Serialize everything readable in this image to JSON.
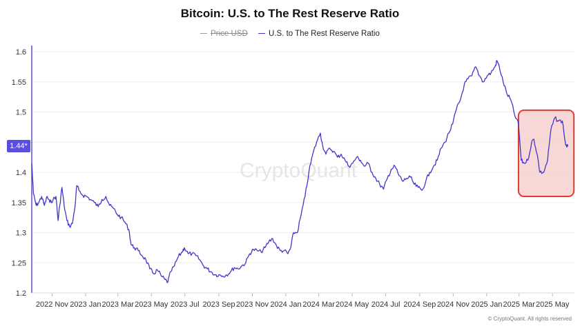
{
  "chart_data": {
    "type": "line",
    "title": "Bitcoin: U.S. to The Rest Reserve Ratio",
    "legend": [
      {
        "name": "Price USD",
        "color": "#9a9a9a",
        "hidden": true
      },
      {
        "name": "U.S. to The Rest Reserve Ratio",
        "color": "#3f36c9",
        "hidden": false
      }
    ],
    "legend_placement": "top-center",
    "ylim": [
      1.2,
      1.6
    ],
    "yticks": [
      1.2,
      1.25,
      1.3,
      1.35,
      1.4,
      1.45,
      1.5,
      1.55,
      1.6
    ],
    "ytick_labels": [
      "1.2",
      "1.25",
      "1.3",
      "1.35",
      "1.4",
      "",
      "1.5",
      "1.55",
      "1.6"
    ],
    "xlim": [
      "2022-09-25",
      "2025-06-10"
    ],
    "xticks": [
      "2022-11-01",
      "2023-01-01",
      "2023-03-01",
      "2023-05-01",
      "2023-07-01",
      "2023-09-01",
      "2023-11-01",
      "2024-01-01",
      "2024-03-01",
      "2024-05-01",
      "2024-07-01",
      "2024-09-01",
      "2024-11-01",
      "2025-01-01",
      "2025-03-01",
      "2025-05-01"
    ],
    "xtick_labels": [
      "2022 Nov",
      "2023 Jan",
      "2023 Mar",
      "2023 May",
      "2023 Jul",
      "2023 Sep",
      "2023 Nov",
      "2024 Jan",
      "2024 Mar",
      "2024 May",
      "2024 Jul",
      "2024 Sep",
      "2024 Nov",
      "2025 Jan",
      "2025 Mar",
      "2025 May"
    ],
    "last_value_label": "1.44*",
    "grid": true,
    "series": [
      {
        "name": "U.S. to The Rest Reserve Ratio",
        "color": "#3f36c9",
        "points": [
          [
            "2022-09-25",
            1.415
          ],
          [
            "2022-09-28",
            1.365
          ],
          [
            "2022-10-03",
            1.345
          ],
          [
            "2022-10-08",
            1.35
          ],
          [
            "2022-10-13",
            1.36
          ],
          [
            "2022-10-18",
            1.345
          ],
          [
            "2022-10-23",
            1.36
          ],
          [
            "2022-10-28",
            1.35
          ],
          [
            "2022-11-03",
            1.355
          ],
          [
            "2022-11-08",
            1.36
          ],
          [
            "2022-11-12",
            1.32
          ],
          [
            "2022-11-15",
            1.345
          ],
          [
            "2022-11-19",
            1.375
          ],
          [
            "2022-11-23",
            1.345
          ],
          [
            "2022-11-28",
            1.32
          ],
          [
            "2022-12-03",
            1.31
          ],
          [
            "2022-12-08",
            1.315
          ],
          [
            "2022-12-13",
            1.345
          ],
          [
            "2022-12-16",
            1.378
          ],
          [
            "2022-12-20",
            1.37
          ],
          [
            "2022-12-27",
            1.362
          ],
          [
            "2023-01-03",
            1.36
          ],
          [
            "2023-01-10",
            1.355
          ],
          [
            "2023-01-17",
            1.35
          ],
          [
            "2023-01-24",
            1.343
          ],
          [
            "2023-01-31",
            1.355
          ],
          [
            "2023-02-07",
            1.36
          ],
          [
            "2023-02-14",
            1.345
          ],
          [
            "2023-02-21",
            1.34
          ],
          [
            "2023-02-28",
            1.33
          ],
          [
            "2023-03-07",
            1.325
          ],
          [
            "2023-03-14",
            1.317
          ],
          [
            "2023-03-21",
            1.305
          ],
          [
            "2023-03-25",
            1.28
          ],
          [
            "2023-03-31",
            1.275
          ],
          [
            "2023-04-07",
            1.27
          ],
          [
            "2023-04-14",
            1.262
          ],
          [
            "2023-04-21",
            1.255
          ],
          [
            "2023-04-28",
            1.24
          ],
          [
            "2023-05-05",
            1.232
          ],
          [
            "2023-05-12",
            1.238
          ],
          [
            "2023-05-19",
            1.228
          ],
          [
            "2023-05-26",
            1.222
          ],
          [
            "2023-05-31",
            1.218
          ],
          [
            "2023-06-05",
            1.235
          ],
          [
            "2023-06-12",
            1.245
          ],
          [
            "2023-06-19",
            1.26
          ],
          [
            "2023-06-26",
            1.268
          ],
          [
            "2023-06-30",
            1.275
          ],
          [
            "2023-07-07",
            1.265
          ],
          [
            "2023-07-14",
            1.265
          ],
          [
            "2023-07-21",
            1.262
          ],
          [
            "2023-07-28",
            1.255
          ],
          [
            "2023-08-04",
            1.245
          ],
          [
            "2023-08-11",
            1.24
          ],
          [
            "2023-08-18",
            1.235
          ],
          [
            "2023-08-25",
            1.23
          ],
          [
            "2023-09-01",
            1.23
          ],
          [
            "2023-09-08",
            1.228
          ],
          [
            "2023-09-15",
            1.23
          ],
          [
            "2023-09-22",
            1.235
          ],
          [
            "2023-09-29",
            1.242
          ],
          [
            "2023-10-06",
            1.24
          ],
          [
            "2023-10-13",
            1.245
          ],
          [
            "2023-10-20",
            1.25
          ],
          [
            "2023-10-27",
            1.265
          ],
          [
            "2023-11-03",
            1.272
          ],
          [
            "2023-11-10",
            1.27
          ],
          [
            "2023-11-17",
            1.268
          ],
          [
            "2023-11-24",
            1.275
          ],
          [
            "2023-12-01",
            1.285
          ],
          [
            "2023-12-08",
            1.29
          ],
          [
            "2023-12-15",
            1.278
          ],
          [
            "2023-12-22",
            1.27
          ],
          [
            "2023-12-29",
            1.27
          ],
          [
            "2024-01-05",
            1.265
          ],
          [
            "2024-01-10",
            1.275
          ],
          [
            "2024-01-15",
            1.3
          ],
          [
            "2024-01-22",
            1.3
          ],
          [
            "2024-01-29",
            1.33
          ],
          [
            "2024-02-05",
            1.36
          ],
          [
            "2024-02-12",
            1.4
          ],
          [
            "2024-02-19",
            1.43
          ],
          [
            "2024-02-26",
            1.45
          ],
          [
            "2024-03-04",
            1.465
          ],
          [
            "2024-03-08",
            1.445
          ],
          [
            "2024-03-14",
            1.43
          ],
          [
            "2024-03-21",
            1.44
          ],
          [
            "2024-03-28",
            1.435
          ],
          [
            "2024-04-04",
            1.425
          ],
          [
            "2024-04-11",
            1.43
          ],
          [
            "2024-04-18",
            1.42
          ],
          [
            "2024-04-25",
            1.41
          ],
          [
            "2024-05-02",
            1.415
          ],
          [
            "2024-05-09",
            1.425
          ],
          [
            "2024-05-16",
            1.42
          ],
          [
            "2024-05-23",
            1.41
          ],
          [
            "2024-05-30",
            1.415
          ],
          [
            "2024-06-06",
            1.4
          ],
          [
            "2024-06-13",
            1.39
          ],
          [
            "2024-06-20",
            1.38
          ],
          [
            "2024-06-27",
            1.372
          ],
          [
            "2024-07-04",
            1.39
          ],
          [
            "2024-07-11",
            1.405
          ],
          [
            "2024-07-18",
            1.41
          ],
          [
            "2024-07-25",
            1.395
          ],
          [
            "2024-08-01",
            1.385
          ],
          [
            "2024-08-08",
            1.39
          ],
          [
            "2024-08-15",
            1.392
          ],
          [
            "2024-08-22",
            1.38
          ],
          [
            "2024-08-29",
            1.375
          ],
          [
            "2024-09-05",
            1.37
          ],
          [
            "2024-09-12",
            1.385
          ],
          [
            "2024-09-19",
            1.4
          ],
          [
            "2024-09-26",
            1.41
          ],
          [
            "2024-10-03",
            1.42
          ],
          [
            "2024-10-10",
            1.44
          ],
          [
            "2024-10-17",
            1.45
          ],
          [
            "2024-10-24",
            1.465
          ],
          [
            "2024-10-31",
            1.48
          ],
          [
            "2024-11-07",
            1.505
          ],
          [
            "2024-11-14",
            1.52
          ],
          [
            "2024-11-21",
            1.545
          ],
          [
            "2024-11-28",
            1.555
          ],
          [
            "2024-12-05",
            1.56
          ],
          [
            "2024-12-12",
            1.575
          ],
          [
            "2024-12-19",
            1.56
          ],
          [
            "2024-12-26",
            1.55
          ],
          [
            "2025-01-02",
            1.56
          ],
          [
            "2025-01-09",
            1.565
          ],
          [
            "2025-01-16",
            1.575
          ],
          [
            "2025-01-20",
            1.585
          ],
          [
            "2025-01-24",
            1.575
          ],
          [
            "2025-01-31",
            1.55
          ],
          [
            "2025-02-07",
            1.53
          ],
          [
            "2025-02-14",
            1.52
          ],
          [
            "2025-02-21",
            1.495
          ],
          [
            "2025-02-28",
            1.48
          ],
          [
            "2025-03-05",
            1.42
          ],
          [
            "2025-03-10",
            1.415
          ],
          [
            "2025-03-17",
            1.42
          ],
          [
            "2025-03-24",
            1.45
          ],
          [
            "2025-03-28",
            1.455
          ],
          [
            "2025-04-03",
            1.43
          ],
          [
            "2025-04-08",
            1.4
          ],
          [
            "2025-04-15",
            1.4
          ],
          [
            "2025-04-22",
            1.42
          ],
          [
            "2025-04-28",
            1.47
          ],
          [
            "2025-05-05",
            1.49
          ],
          [
            "2025-05-12",
            1.485
          ],
          [
            "2025-05-19",
            1.485
          ],
          [
            "2025-05-25",
            1.445
          ],
          [
            "2025-05-29",
            1.443
          ]
        ]
      }
    ],
    "annotations": [
      {
        "type": "highlight-box",
        "x": [
          "2025-02-28",
          "2025-06-09"
        ],
        "y": [
          1.36,
          1.503
        ],
        "fill": "#f6c9c9",
        "stroke": "#e23b2e"
      }
    ]
  },
  "watermark": "CryptoQuant",
  "credit": "© CryptoQuant. All rights reserved"
}
